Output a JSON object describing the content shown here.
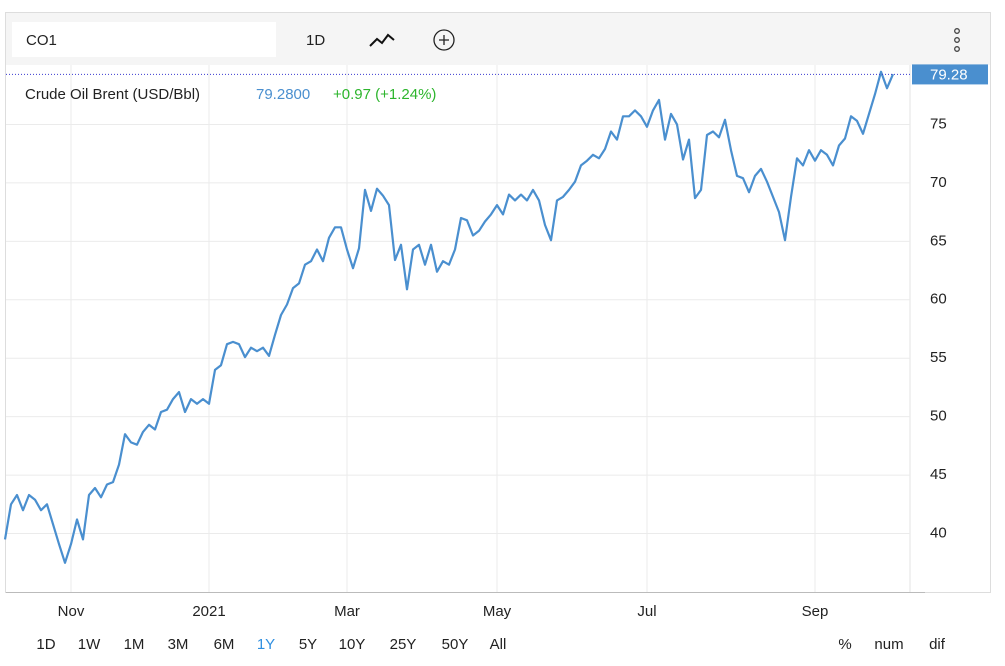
{
  "toolbar": {
    "symbol": "CO1",
    "interval": "1D"
  },
  "chart_data": {
    "type": "line",
    "price": "79.2800",
    "change": "+0.97 (+1.24%)",
    "last_price": 79.28,
    "categories": [
      null,
      null,
      null,
      null,
      null,
      null,
      null,
      null,
      null,
      null,
      null,
      "Nov",
      null,
      null,
      null,
      null,
      null,
      null,
      null,
      null,
      null,
      null,
      null,
      null,
      null,
      null,
      null,
      null,
      null,
      null,
      null,
      null,
      null,
      null,
      "2021",
      null,
      null,
      null,
      null,
      null,
      null,
      null,
      null,
      null,
      null,
      null,
      null,
      null,
      null,
      null,
      null,
      null,
      null,
      null,
      null,
      null,
      null,
      "Mar",
      null,
      null,
      null,
      null,
      null,
      null,
      null,
      null,
      null,
      null,
      null,
      null,
      null,
      null,
      null,
      null,
      null,
      null,
      null,
      null,
      null,
      null,
      null,
      null,
      "May",
      null,
      null,
      null,
      null,
      null,
      null,
      null,
      null,
      null,
      null,
      null,
      null,
      null,
      null,
      null,
      null,
      null,
      null,
      null,
      null,
      null,
      null,
      null,
      null,
      "Jul",
      null,
      null,
      null,
      null,
      null,
      null,
      null,
      null,
      null,
      null,
      null,
      null,
      null,
      null,
      null,
      null,
      null,
      null,
      null,
      null,
      null,
      null,
      null,
      null,
      null,
      null,
      null,
      "Sep",
      null,
      null,
      null,
      null,
      null,
      null,
      null,
      null,
      null,
      null,
      null,
      null,
      null
    ],
    "series": [
      {
        "name": "Crude Oil Brent (USD/Bbl)",
        "color": "#4a8fcf",
        "values": [
          39.5,
          42.5,
          43.3,
          42,
          43.3,
          42.9,
          42,
          42.5,
          40.8,
          39.1,
          37.5,
          39.1,
          41.2,
          39.5,
          43.3,
          43.9,
          43.1,
          44.2,
          44.4,
          45.9,
          48.5,
          47.8,
          47.6,
          48.7,
          49.3,
          48.9,
          50.4,
          50.6,
          51.5,
          52.1,
          50.4,
          51.5,
          51.1,
          51.5,
          51.1,
          54,
          54.4,
          56.2,
          56.4,
          56.2,
          55.1,
          55.9,
          55.6,
          55.9,
          55.2,
          57,
          58.7,
          59.6,
          61,
          61.4,
          63,
          63.3,
          64.3,
          63.3,
          65.3,
          66.2,
          66.2,
          64.3,
          62.7,
          64.4,
          69.4,
          67.6,
          69.5,
          68.9,
          68.1,
          63.4,
          64.7,
          60.9,
          64.3,
          64.7,
          63,
          64.7,
          62.4,
          63.3,
          63,
          64.3,
          67,
          66.8,
          65.5,
          65.9,
          66.7,
          67.3,
          68.1,
          67.3,
          69,
          68.5,
          69,
          68.5,
          69.4,
          68.5,
          66.4,
          65.1,
          68.5,
          68.8,
          69.4,
          70.1,
          71.5,
          71.9,
          72.4,
          72.1,
          72.9,
          74.4,
          73.7,
          75.7,
          75.7,
          76.2,
          75.7,
          74.8,
          76.2,
          77.1,
          73.7,
          75.9,
          75,
          72,
          73.7,
          68.7,
          69.4,
          74.1,
          74.4,
          73.9,
          75.4,
          72.8,
          70.6,
          70.4,
          69.2,
          70.6,
          71.2,
          70.1,
          68.8,
          67.5,
          65.1,
          68.8,
          72.1,
          71.5,
          72.8,
          71.9,
          72.8,
          72.4,
          71.5,
          73.2,
          73.8,
          75.7,
          75.3,
          74.2,
          75.9,
          77.6,
          79.5,
          78.1,
          79.3
        ]
      }
    ],
    "ylim": [
      35,
      80
    ],
    "yticks": [
      40,
      45,
      50,
      55,
      60,
      65,
      70,
      75
    ],
    "grid": true
  },
  "ranges": [
    "1D",
    "1W",
    "1M",
    "3M",
    "6M",
    "1Y",
    "5Y",
    "10Y",
    "25Y",
    "50Y",
    "All"
  ],
  "active_range": 5,
  "modes": [
    "%",
    "num",
    "dif"
  ]
}
